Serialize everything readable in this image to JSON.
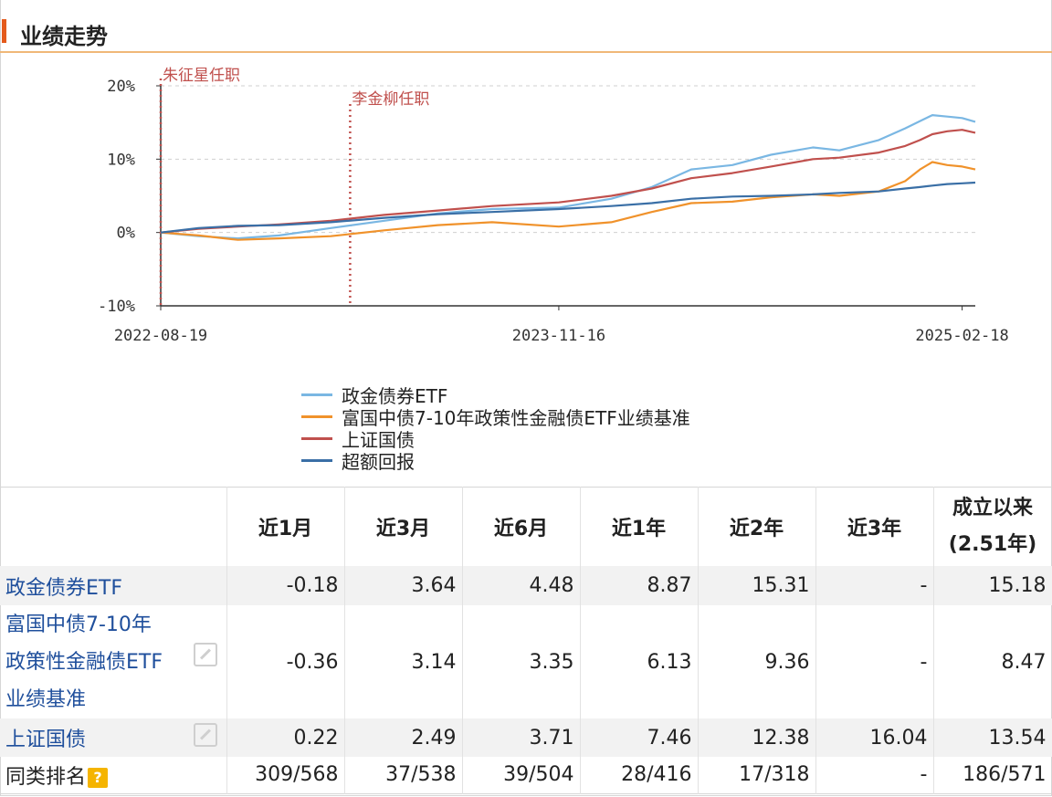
{
  "section": {
    "title": "业绩走势"
  },
  "chart_data": {
    "type": "line",
    "y_ticks": [
      "20%",
      "10%",
      "0%",
      "-10%"
    ],
    "y_tick_values": [
      20,
      10,
      0,
      -10
    ],
    "ylim": [
      -10,
      20
    ],
    "x_ticks": [
      "2022-08-19",
      "2023-11-16",
      "2025-02-18"
    ],
    "xlim": [
      "2022-08-19",
      "2025-03-05"
    ],
    "annotations": [
      {
        "label": "朱征星任职",
        "date": "2022-08-19",
        "color": "#c0504d"
      },
      {
        "label": "李金柳任职",
        "date": "2023-03-23",
        "color": "#c0504d"
      }
    ],
    "series": [
      {
        "name": "政金债券ETF",
        "color": "#7ab7e3",
        "points": [
          [
            "2022-08-19",
            0
          ],
          [
            "2022-10-01",
            -0.5
          ],
          [
            "2022-11-15",
            -0.8
          ],
          [
            "2023-01-01",
            -0.4
          ],
          [
            "2023-03-01",
            0.6
          ],
          [
            "2023-05-01",
            1.6
          ],
          [
            "2023-07-01",
            2.6
          ],
          [
            "2023-09-01",
            3.2
          ],
          [
            "2023-11-16",
            3.4
          ],
          [
            "2024-01-15",
            4.6
          ],
          [
            "2024-03-01",
            6.2
          ],
          [
            "2024-04-15",
            8.6
          ],
          [
            "2024-06-01",
            9.2
          ],
          [
            "2024-07-15",
            10.6
          ],
          [
            "2024-09-01",
            11.6
          ],
          [
            "2024-10-01",
            11.2
          ],
          [
            "2024-11-15",
            12.6
          ],
          [
            "2024-12-15",
            14.2
          ],
          [
            "2025-01-01",
            15.2
          ],
          [
            "2025-01-15",
            16.0
          ],
          [
            "2025-02-01",
            15.8
          ],
          [
            "2025-02-18",
            15.6
          ],
          [
            "2025-03-05",
            15.1
          ]
        ]
      },
      {
        "name": "富国中债7-10年政策性金融债ETF业绩基准",
        "color": "#f0922b",
        "points": [
          [
            "2022-08-19",
            0
          ],
          [
            "2022-10-01",
            -0.4
          ],
          [
            "2022-11-15",
            -1.0
          ],
          [
            "2023-01-01",
            -0.8
          ],
          [
            "2023-03-01",
            -0.5
          ],
          [
            "2023-05-01",
            0.3
          ],
          [
            "2023-07-01",
            1.0
          ],
          [
            "2023-09-01",
            1.4
          ],
          [
            "2023-11-16",
            0.8
          ],
          [
            "2024-01-15",
            1.4
          ],
          [
            "2024-03-01",
            2.8
          ],
          [
            "2024-04-15",
            4.0
          ],
          [
            "2024-06-01",
            4.2
          ],
          [
            "2024-07-15",
            4.8
          ],
          [
            "2024-09-01",
            5.2
          ],
          [
            "2024-10-01",
            5.0
          ],
          [
            "2024-11-15",
            5.6
          ],
          [
            "2024-12-15",
            7.0
          ],
          [
            "2025-01-01",
            8.6
          ],
          [
            "2025-01-15",
            9.6
          ],
          [
            "2025-02-01",
            9.2
          ],
          [
            "2025-02-18",
            9.0
          ],
          [
            "2025-03-05",
            8.6
          ]
        ]
      },
      {
        "name": "上证国债",
        "color": "#c0504d",
        "points": [
          [
            "2022-08-19",
            0
          ],
          [
            "2022-10-01",
            0.5
          ],
          [
            "2022-11-15",
            0.8
          ],
          [
            "2023-01-01",
            1.1
          ],
          [
            "2023-03-01",
            1.6
          ],
          [
            "2023-05-01",
            2.4
          ],
          [
            "2023-07-01",
            3.0
          ],
          [
            "2023-09-01",
            3.6
          ],
          [
            "2023-11-16",
            4.1
          ],
          [
            "2024-01-15",
            5.0
          ],
          [
            "2024-03-01",
            6.0
          ],
          [
            "2024-04-15",
            7.4
          ],
          [
            "2024-06-01",
            8.1
          ],
          [
            "2024-07-15",
            9.0
          ],
          [
            "2024-09-01",
            10.0
          ],
          [
            "2024-10-01",
            10.2
          ],
          [
            "2024-11-15",
            10.9
          ],
          [
            "2024-12-15",
            11.8
          ],
          [
            "2025-01-01",
            12.6
          ],
          [
            "2025-01-15",
            13.4
          ],
          [
            "2025-02-01",
            13.8
          ],
          [
            "2025-02-18",
            14.0
          ],
          [
            "2025-03-05",
            13.6
          ]
        ]
      },
      {
        "name": "超额回报",
        "color": "#3a6fa6",
        "points": [
          [
            "2022-08-19",
            0
          ],
          [
            "2022-10-01",
            0.6
          ],
          [
            "2022-11-15",
            0.9
          ],
          [
            "2023-01-01",
            1.0
          ],
          [
            "2023-03-01",
            1.4
          ],
          [
            "2023-05-01",
            2.0
          ],
          [
            "2023-07-01",
            2.5
          ],
          [
            "2023-09-01",
            2.8
          ],
          [
            "2023-11-16",
            3.2
          ],
          [
            "2024-01-15",
            3.6
          ],
          [
            "2024-03-01",
            4.0
          ],
          [
            "2024-04-15",
            4.6
          ],
          [
            "2024-06-01",
            4.9
          ],
          [
            "2024-07-15",
            5.0
          ],
          [
            "2024-09-01",
            5.2
          ],
          [
            "2024-10-01",
            5.4
          ],
          [
            "2024-11-15",
            5.6
          ],
          [
            "2024-12-15",
            6.0
          ],
          [
            "2025-01-01",
            6.2
          ],
          [
            "2025-01-15",
            6.4
          ],
          [
            "2025-02-01",
            6.6
          ],
          [
            "2025-02-18",
            6.7
          ],
          [
            "2025-03-05",
            6.8
          ]
        ]
      }
    ]
  },
  "table": {
    "headers": [
      "近1月",
      "近3月",
      "近6月",
      "近1年",
      "近2年",
      "近3年"
    ],
    "header_since": [
      "成立以来",
      "(2.51年)"
    ],
    "rows": [
      {
        "name_lines": [
          "政金债券ETF"
        ],
        "values": [
          "-0.18",
          "3.64",
          "4.48",
          "8.87",
          "15.31",
          "-",
          "15.18"
        ]
      },
      {
        "name_lines": [
          "富国中债7-10年",
          "政策性金融债ETF",
          "业绩基准"
        ],
        "values": [
          "-0.36",
          "3.14",
          "3.35",
          "6.13",
          "9.36",
          "-",
          "8.47"
        ]
      },
      {
        "name_lines": [
          "上证国债"
        ],
        "values": [
          "0.22",
          "2.49",
          "3.71",
          "7.46",
          "12.38",
          "16.04",
          "13.54"
        ]
      },
      {
        "name_lines": [
          "同类排名"
        ],
        "values": [
          "309/568",
          "37/538",
          "39/504",
          "28/416",
          "17/318",
          "-",
          "186/571"
        ]
      }
    ],
    "help_icon": "?"
  }
}
